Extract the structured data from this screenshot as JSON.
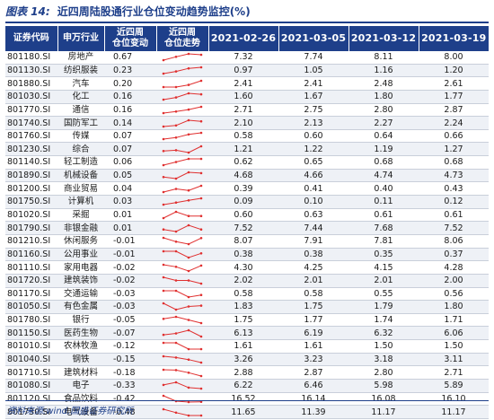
{
  "title": {
    "label": "图表 14:",
    "text": "近四周陆股通行业仓位变动趋势监控(%)"
  },
  "header": {
    "code": "证券代码",
    "industry": "申万行业",
    "change": [
      "近四周",
      "仓位变动"
    ],
    "trend": [
      "近四周",
      "仓位走势"
    ],
    "dates": [
      "2021-02-26",
      "2021-03-05",
      "2021-03-12",
      "2021-03-19"
    ]
  },
  "colors": {
    "header_bg": "#1e3f8a",
    "spark_line": "#e03030",
    "band": "#eef1f6"
  },
  "rows": [
    {
      "code": "801180.SI",
      "industry": "房地产",
      "change": "0.67",
      "values": [
        "7.32",
        "7.74",
        "8.11",
        "8.00"
      ]
    },
    {
      "code": "801130.SI",
      "industry": "纺织服装",
      "change": "0.23",
      "values": [
        "0.97",
        "1.05",
        "1.16",
        "1.20"
      ]
    },
    {
      "code": "801880.SI",
      "industry": "汽车",
      "change": "0.20",
      "values": [
        "2.41",
        "2.41",
        "2.48",
        "2.61"
      ]
    },
    {
      "code": "801030.SI",
      "industry": "化工",
      "change": "0.16",
      "values": [
        "1.60",
        "1.67",
        "1.80",
        "1.77"
      ]
    },
    {
      "code": "801770.SI",
      "industry": "通信",
      "change": "0.16",
      "values": [
        "2.71",
        "2.75",
        "2.80",
        "2.87"
      ]
    },
    {
      "code": "801740.SI",
      "industry": "国防军工",
      "change": "0.14",
      "values": [
        "2.10",
        "2.13",
        "2.27",
        "2.24"
      ]
    },
    {
      "code": "801760.SI",
      "industry": "传媒",
      "change": "0.07",
      "values": [
        "0.58",
        "0.60",
        "0.64",
        "0.66"
      ]
    },
    {
      "code": "801230.SI",
      "industry": "综合",
      "change": "0.07",
      "values": [
        "1.21",
        "1.22",
        "1.19",
        "1.27"
      ]
    },
    {
      "code": "801140.SI",
      "industry": "轻工制造",
      "change": "0.06",
      "values": [
        "0.62",
        "0.65",
        "0.68",
        "0.68"
      ]
    },
    {
      "code": "801890.SI",
      "industry": "机械设备",
      "change": "0.05",
      "values": [
        "4.68",
        "4.66",
        "4.74",
        "4.73"
      ]
    },
    {
      "code": "801200.SI",
      "industry": "商业贸易",
      "change": "0.04",
      "values": [
        "0.39",
        "0.41",
        "0.40",
        "0.43"
      ]
    },
    {
      "code": "801750.SI",
      "industry": "计算机",
      "change": "0.03",
      "values": [
        "0.09",
        "0.10",
        "0.11",
        "0.12"
      ]
    },
    {
      "code": "801020.SI",
      "industry": "采掘",
      "change": "0.01",
      "values": [
        "0.60",
        "0.63",
        "0.61",
        "0.61"
      ]
    },
    {
      "code": "801790.SI",
      "industry": "非银金融",
      "change": "0.01",
      "values": [
        "7.52",
        "7.44",
        "7.68",
        "7.52"
      ]
    },
    {
      "code": "801210.SI",
      "industry": "休闲服务",
      "change": "-0.01",
      "values": [
        "8.07",
        "7.91",
        "7.81",
        "8.06"
      ]
    },
    {
      "code": "801160.SI",
      "industry": "公用事业",
      "change": "-0.01",
      "values": [
        "0.38",
        "0.38",
        "0.35",
        "0.37"
      ]
    },
    {
      "code": "801110.SI",
      "industry": "家用电器",
      "change": "-0.02",
      "values": [
        "4.30",
        "4.25",
        "4.15",
        "4.28"
      ]
    },
    {
      "code": "801720.SI",
      "industry": "建筑装饰",
      "change": "-0.02",
      "values": [
        "2.02",
        "2.01",
        "2.01",
        "2.00"
      ]
    },
    {
      "code": "801170.SI",
      "industry": "交通运输",
      "change": "-0.03",
      "values": [
        "0.58",
        "0.58",
        "0.55",
        "0.56"
      ]
    },
    {
      "code": "801050.SI",
      "industry": "有色金属",
      "change": "-0.03",
      "values": [
        "1.83",
        "1.75",
        "1.79",
        "1.80"
      ]
    },
    {
      "code": "801780.SI",
      "industry": "银行",
      "change": "-0.05",
      "values": [
        "1.75",
        "1.77",
        "1.74",
        "1.71"
      ]
    },
    {
      "code": "801150.SI",
      "industry": "医药生物",
      "change": "-0.07",
      "values": [
        "6.13",
        "6.19",
        "6.32",
        "6.06"
      ]
    },
    {
      "code": "801010.SI",
      "industry": "农林牧渔",
      "change": "-0.12",
      "values": [
        "1.61",
        "1.61",
        "1.50",
        "1.50"
      ]
    },
    {
      "code": "801040.SI",
      "industry": "钢铁",
      "change": "-0.15",
      "values": [
        "3.26",
        "3.23",
        "3.18",
        "3.11"
      ]
    },
    {
      "code": "801710.SI",
      "industry": "建筑材料",
      "change": "-0.18",
      "values": [
        "2.88",
        "2.87",
        "2.80",
        "2.71"
      ]
    },
    {
      "code": "801080.SI",
      "industry": "电子",
      "change": "-0.33",
      "values": [
        "6.22",
        "6.46",
        "5.98",
        "5.89"
      ]
    },
    {
      "code": "801120.SI",
      "industry": "食品饮料",
      "change": "-0.42",
      "values": [
        "16.52",
        "16.14",
        "16.08",
        "16.10"
      ]
    },
    {
      "code": "801730.SI",
      "industry": "电气设备",
      "change": "-0.48",
      "values": [
        "11.65",
        "11.39",
        "11.17",
        "11.17"
      ]
    }
  ],
  "source": "资料来源:wind,国盛证券研究所"
}
